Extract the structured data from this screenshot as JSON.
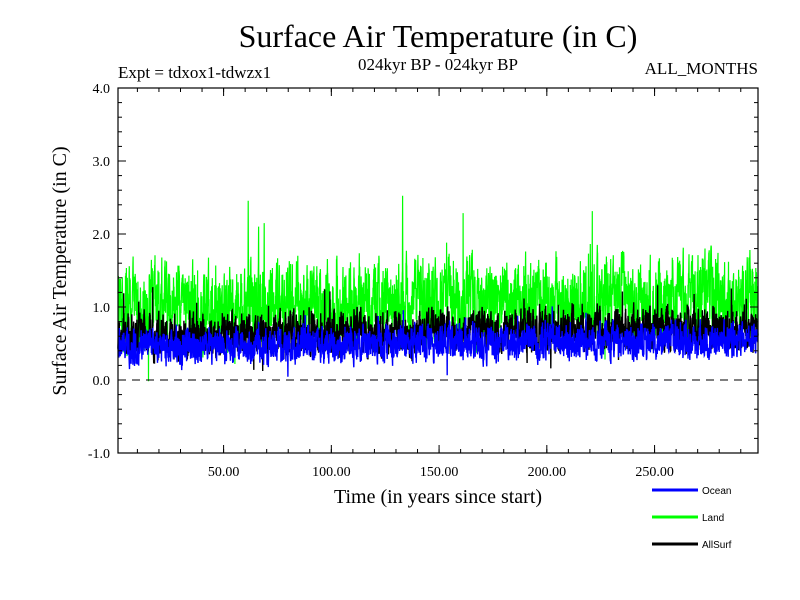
{
  "chart_data": {
    "type": "line",
    "title": "Surface Air Temperature (in C)",
    "subtitle_left": "Expt = tdxox1-tdwzx1",
    "subtitle_center": "024kyr BP - 024kyr BP",
    "subtitle_right": "ALL_MONTHS",
    "xlabel": "Time (in years since start)",
    "ylabel": "Surface Air Temperature (in C)",
    "xlim": [
      1,
      298
    ],
    "ylim": [
      -1.0,
      4.0
    ],
    "x_ticks": [
      50,
      100,
      150,
      200,
      250
    ],
    "x_tick_labels": [
      "50.00",
      "100.00",
      "150.00",
      "200.00",
      "250.00"
    ],
    "y_ticks": [
      -1.0,
      0.0,
      1.0,
      2.0,
      3.0,
      4.0
    ],
    "y_tick_labels": [
      "-1.0",
      "0.0",
      "1.0",
      "2.0",
      "3.0",
      "4.0"
    ],
    "reference_line": 0.0,
    "samples_per_year": 12,
    "series": [
      {
        "name": "Ocean",
        "color": "#0000ff",
        "mean": 0.45,
        "noise": 0.18,
        "trend": 0.1
      },
      {
        "name": "Land",
        "color": "#00ff00",
        "mean": 1.0,
        "noise": 0.42,
        "trend": 0.15
      },
      {
        "name": "AllSurf",
        "color": "#000000",
        "mean": 0.6,
        "noise": 0.22,
        "trend": 0.12
      }
    ],
    "legend_position": "bottom-right"
  }
}
